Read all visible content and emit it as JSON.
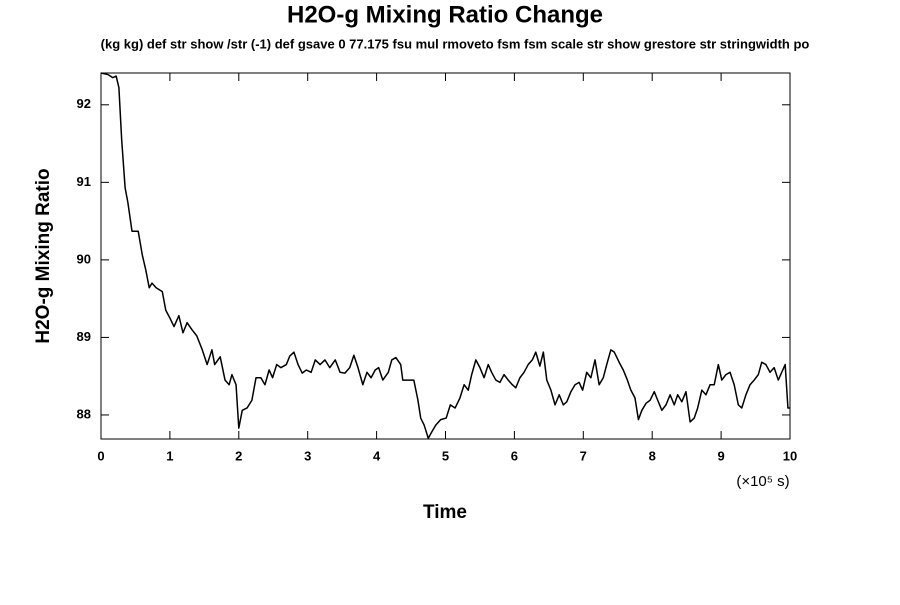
{
  "chart_data": {
    "type": "line",
    "title": "H2O-g Mixing Ratio Change",
    "subtitle": "(kg kg) def str show /str (-1) def gsave 0 77.175 fsu mul rmoveto fsm fsm scale str show grestore str stringwidth po",
    "xlabel": "Time",
    "ylabel": "H2O-g Mixing Ratio",
    "x_units": "(×10⁵ s)",
    "xlim": [
      0,
      10
    ],
    "ylim": [
      87.69,
      92.41
    ],
    "xticks": [
      0,
      1,
      2,
      3,
      4,
      5,
      6,
      7,
      8,
      9,
      10
    ],
    "yticks": [
      88,
      89,
      90,
      91,
      92
    ],
    "grid": false,
    "series": [
      {
        "color": "#000000",
        "x": [
          0,
          0.1,
          0.17,
          0.22,
          0.26,
          0.3,
          0.35,
          0.39,
          0.45,
          0.54,
          0.6,
          0.65,
          0.7,
          0.74,
          0.8,
          0.89,
          0.94,
          1.0,
          1.06,
          1.13,
          1.19,
          1.25,
          1.32,
          1.39,
          1.47,
          1.54,
          1.61,
          1.65,
          1.73,
          1.8,
          1.86,
          1.9,
          1.96,
          2.0,
          2.05,
          2.12,
          2.19,
          2.25,
          2.32,
          2.38,
          2.44,
          2.49,
          2.55,
          2.61,
          2.69,
          2.74,
          2.8,
          2.86,
          2.92,
          2.98,
          3.05,
          3.11,
          3.18,
          3.25,
          3.32,
          3.4,
          3.47,
          3.54,
          3.61,
          3.67,
          3.73,
          3.8,
          3.86,
          3.92,
          3.98,
          4.03,
          4.09,
          4.17,
          4.22,
          4.28,
          4.35,
          4.38,
          4.54,
          4.6,
          4.64,
          4.69,
          4.75,
          4.8,
          4.86,
          4.93,
          5.01,
          5.07,
          5.14,
          5.21,
          5.27,
          5.33,
          5.38,
          5.44,
          5.5,
          5.56,
          5.62,
          5.67,
          5.73,
          5.79,
          5.85,
          5.91,
          5.97,
          6.02,
          6.08,
          6.14,
          6.2,
          6.26,
          6.31,
          6.37,
          6.42,
          6.47,
          6.53,
          6.59,
          6.65,
          6.71,
          6.76,
          6.82,
          6.88,
          6.94,
          6.99,
          7.05,
          7.11,
          7.17,
          7.23,
          7.29,
          7.34,
          7.4,
          7.45,
          7.52,
          7.58,
          7.64,
          7.69,
          7.75,
          7.8,
          7.85,
          7.91,
          7.97,
          8.03,
          8.08,
          8.14,
          8.2,
          8.26,
          8.32,
          8.37,
          8.43,
          8.49,
          8.55,
          8.61,
          8.66,
          8.72,
          8.78,
          8.84,
          8.9,
          8.96,
          9.01,
          9.07,
          9.13,
          9.19,
          9.25,
          9.3,
          9.36,
          9.42,
          9.48,
          9.54,
          9.59,
          9.65,
          9.71,
          9.77,
          9.83,
          9.88,
          9.93,
          9.97,
          10.0
        ],
        "values": [
          92.41,
          92.39,
          92.35,
          92.37,
          92.22,
          91.55,
          90.93,
          90.74,
          90.37,
          90.37,
          90.06,
          89.87,
          89.64,
          89.7,
          89.64,
          89.59,
          89.35,
          89.25,
          89.14,
          89.28,
          89.06,
          89.19,
          89.1,
          89.02,
          88.84,
          88.65,
          88.84,
          88.65,
          88.75,
          88.45,
          88.39,
          88.52,
          88.39,
          87.83,
          88.06,
          88.09,
          88.19,
          88.48,
          88.48,
          88.39,
          88.58,
          88.48,
          88.65,
          88.61,
          88.65,
          88.76,
          88.81,
          88.65,
          88.54,
          88.58,
          88.55,
          88.71,
          88.65,
          88.71,
          88.61,
          88.71,
          88.55,
          88.54,
          88.61,
          88.77,
          88.61,
          88.39,
          88.55,
          88.48,
          88.58,
          88.61,
          88.45,
          88.55,
          88.71,
          88.74,
          88.65,
          88.45,
          88.45,
          88.19,
          87.96,
          87.87,
          87.7,
          87.78,
          87.87,
          87.94,
          87.96,
          88.13,
          88.09,
          88.22,
          88.39,
          88.32,
          88.52,
          88.71,
          88.61,
          88.48,
          88.65,
          88.55,
          88.45,
          88.42,
          88.52,
          88.45,
          88.39,
          88.35,
          88.48,
          88.55,
          88.65,
          88.71,
          88.81,
          88.63,
          88.81,
          88.45,
          88.32,
          88.13,
          88.26,
          88.13,
          88.17,
          88.3,
          88.39,
          88.42,
          88.32,
          88.55,
          88.48,
          88.71,
          88.39,
          88.48,
          88.65,
          88.84,
          88.81,
          88.68,
          88.58,
          88.45,
          88.32,
          88.22,
          87.94,
          88.06,
          88.15,
          88.19,
          88.3,
          88.19,
          88.06,
          88.13,
          88.26,
          88.13,
          88.26,
          88.17,
          88.3,
          87.91,
          87.96,
          88.09,
          88.32,
          88.26,
          88.39,
          88.39,
          88.65,
          88.45,
          88.52,
          88.55,
          88.39,
          88.13,
          88.09,
          88.26,
          88.39,
          88.45,
          88.52,
          88.68,
          88.65,
          88.55,
          88.61,
          88.45,
          88.55,
          88.65,
          88.09,
          88.09
        ]
      }
    ]
  }
}
